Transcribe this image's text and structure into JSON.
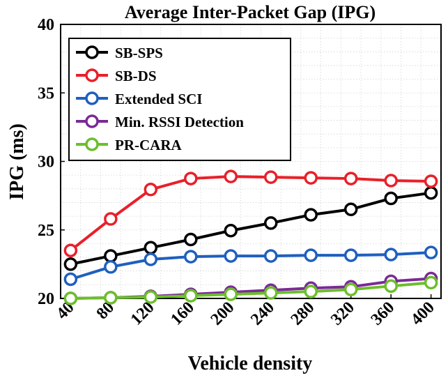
{
  "chart_data": {
    "type": "line",
    "title": "Average Inter-Packet Gap (IPG)",
    "xlabel": "Vehicle density",
    "ylabel": "IPG (ms)",
    "x": [
      40,
      80,
      120,
      160,
      200,
      240,
      280,
      320,
      360,
      400
    ],
    "ylim": [
      20,
      40
    ],
    "yticks": [
      20,
      25,
      30,
      35,
      40
    ],
    "grid": true,
    "legend_position": "top-left",
    "series": [
      {
        "name": "SB-SPS",
        "color": "#000000",
        "values": [
          22.5,
          23.1,
          23.7,
          24.3,
          24.95,
          25.5,
          26.1,
          26.5,
          27.3,
          27.7
        ]
      },
      {
        "name": "SB-DS",
        "color": "#e8202a",
        "values": [
          23.5,
          25.8,
          27.95,
          28.75,
          28.9,
          28.85,
          28.8,
          28.75,
          28.6,
          28.55
        ]
      },
      {
        "name": "Extended SCI",
        "color": "#1f5fbf",
        "values": [
          21.4,
          22.3,
          22.85,
          23.05,
          23.1,
          23.1,
          23.15,
          23.15,
          23.2,
          23.35
        ]
      },
      {
        "name": "Min. RSSI Detection",
        "color": "#7a2a96",
        "values": [
          20.0,
          20.05,
          20.15,
          20.3,
          20.45,
          20.6,
          20.75,
          20.85,
          21.25,
          21.45
        ]
      },
      {
        "name": "PR-CARA",
        "color": "#6bbf2a",
        "values": [
          20.0,
          20.05,
          20.1,
          20.2,
          20.3,
          20.4,
          20.5,
          20.65,
          20.9,
          21.15
        ]
      }
    ]
  }
}
